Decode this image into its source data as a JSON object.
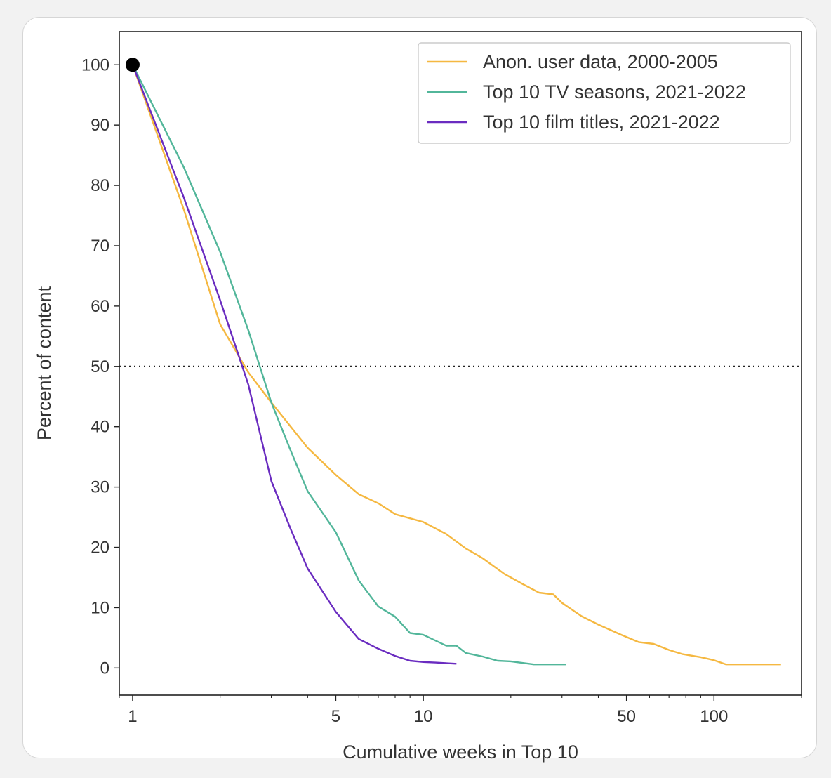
{
  "chart_data": {
    "type": "line",
    "title": "",
    "xlabel": "Cumulative weeks in Top 10",
    "ylabel": "Percent of content",
    "xscale": "log",
    "xlim": [
      0.9,
      200
    ],
    "ylim": [
      -4.5,
      105.5
    ],
    "xticks": [
      1,
      5,
      10,
      50,
      100
    ],
    "xtick_labels": [
      "1",
      "5",
      "10",
      "50",
      "100"
    ],
    "yticks": [
      0,
      10,
      20,
      30,
      40,
      50,
      60,
      70,
      80,
      90,
      100
    ],
    "ytick_labels": [
      "0",
      "10",
      "20",
      "30",
      "40",
      "50",
      "60",
      "70",
      "80",
      "90",
      "100"
    ],
    "reference_line": {
      "y": 50,
      "style": "dotted",
      "color": "#222222"
    },
    "start_marker": {
      "x": 1,
      "y": 100,
      "color": "#000000"
    },
    "legend_position": "top-right",
    "series": [
      {
        "name": "Anon. user data, 2000-2005",
        "color": "#F5B841",
        "points": [
          [
            1,
            100
          ],
          [
            1.5,
            76
          ],
          [
            2,
            57
          ],
          [
            2.5,
            49
          ],
          [
            3,
            44
          ],
          [
            3.5,
            40
          ],
          [
            4,
            36.5
          ],
          [
            5,
            32
          ],
          [
            6,
            28.8
          ],
          [
            7,
            27.3
          ],
          [
            8,
            25.5
          ],
          [
            10,
            24.2
          ],
          [
            12,
            22.2
          ],
          [
            14,
            19.8
          ],
          [
            16,
            18.2
          ],
          [
            19,
            15.6
          ],
          [
            22,
            13.9
          ],
          [
            25,
            12.5
          ],
          [
            28,
            12.2
          ],
          [
            30,
            10.8
          ],
          [
            35,
            8.6
          ],
          [
            40,
            7.2
          ],
          [
            48,
            5.5
          ],
          [
            55,
            4.3
          ],
          [
            62,
            4.0
          ],
          [
            70,
            3.0
          ],
          [
            78,
            2.3
          ],
          [
            90,
            1.8
          ],
          [
            100,
            1.3
          ],
          [
            110,
            0.6
          ],
          [
            130,
            0.6
          ],
          [
            170,
            0.6
          ]
        ]
      },
      {
        "name": "Top 10 TV seasons, 2021-2022",
        "color": "#52B69A",
        "points": [
          [
            1,
            100
          ],
          [
            1.5,
            83
          ],
          [
            2,
            69
          ],
          [
            2.5,
            56
          ],
          [
            3,
            44
          ],
          [
            3.5,
            36
          ],
          [
            4,
            29.3
          ],
          [
            5,
            22.5
          ],
          [
            6,
            14.5
          ],
          [
            7,
            10.2
          ],
          [
            8,
            8.5
          ],
          [
            9,
            5.8
          ],
          [
            10,
            5.5
          ],
          [
            12,
            3.7
          ],
          [
            13,
            3.7
          ],
          [
            14,
            2.5
          ],
          [
            16,
            1.9
          ],
          [
            18,
            1.2
          ],
          [
            20,
            1.1
          ],
          [
            24,
            0.6
          ],
          [
            31,
            0.6
          ]
        ]
      },
      {
        "name": "Top 10 film titles, 2021-2022",
        "color": "#6A2CC0",
        "points": [
          [
            1,
            100
          ],
          [
            1.5,
            78
          ],
          [
            2,
            61
          ],
          [
            2.5,
            47
          ],
          [
            3,
            31
          ],
          [
            3.5,
            23
          ],
          [
            4,
            16.5
          ],
          [
            5,
            9.3
          ],
          [
            6,
            4.8
          ],
          [
            7,
            3.2
          ],
          [
            8,
            2.0
          ],
          [
            9,
            1.2
          ],
          [
            10,
            1.0
          ],
          [
            11,
            0.9
          ],
          [
            13,
            0.7
          ]
        ]
      }
    ]
  }
}
